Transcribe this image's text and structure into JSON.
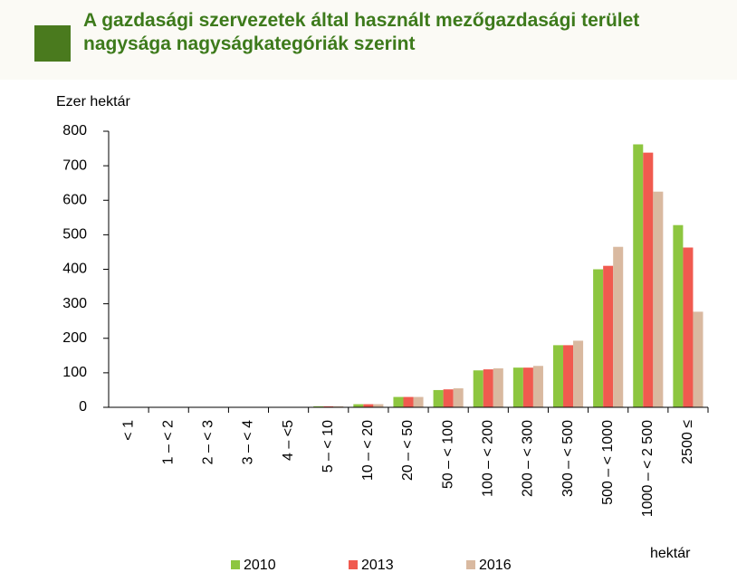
{
  "chart_data": {
    "type": "bar",
    "title": "A gazdasági szervezetek által használt mezőgazdasági terület nagysága nagyságkategóriák szerint",
    "y_label": "Ezer hektár",
    "x_label": "hektár",
    "categories": [
      "< 1",
      "1 – < 2",
      "2 – < 3",
      "3 – < 4",
      "4 – <5",
      "5 – < 10",
      "10 – < 20",
      "20 – < 50",
      "50 – < 100",
      "100 – < 200",
      "200 – < 300",
      "300 – < 500",
      "500 – < 1000",
      "1000 – < 2 500",
      "2500 ≤"
    ],
    "series": [
      {
        "name": "2010",
        "color": "#8dc63f",
        "values": [
          0,
          0,
          0,
          0,
          1,
          3,
          9,
          30,
          50,
          107,
          115,
          180,
          400,
          762,
          528
        ]
      },
      {
        "name": "2013",
        "color": "#f05a4f",
        "values": [
          0,
          0,
          0,
          0,
          1,
          3,
          9,
          30,
          52,
          110,
          115,
          180,
          410,
          738,
          463
        ]
      },
      {
        "name": "2016",
        "color": "#d9b9a0",
        "values": [
          0,
          0,
          0,
          0,
          1,
          3,
          9,
          30,
          55,
          113,
          120,
          193,
          465,
          625,
          277
        ]
      }
    ],
    "ylim": [
      0,
      800
    ],
    "yticks": [
      0,
      100,
      200,
      300,
      400,
      500,
      600,
      700,
      800
    ],
    "grid": false
  }
}
